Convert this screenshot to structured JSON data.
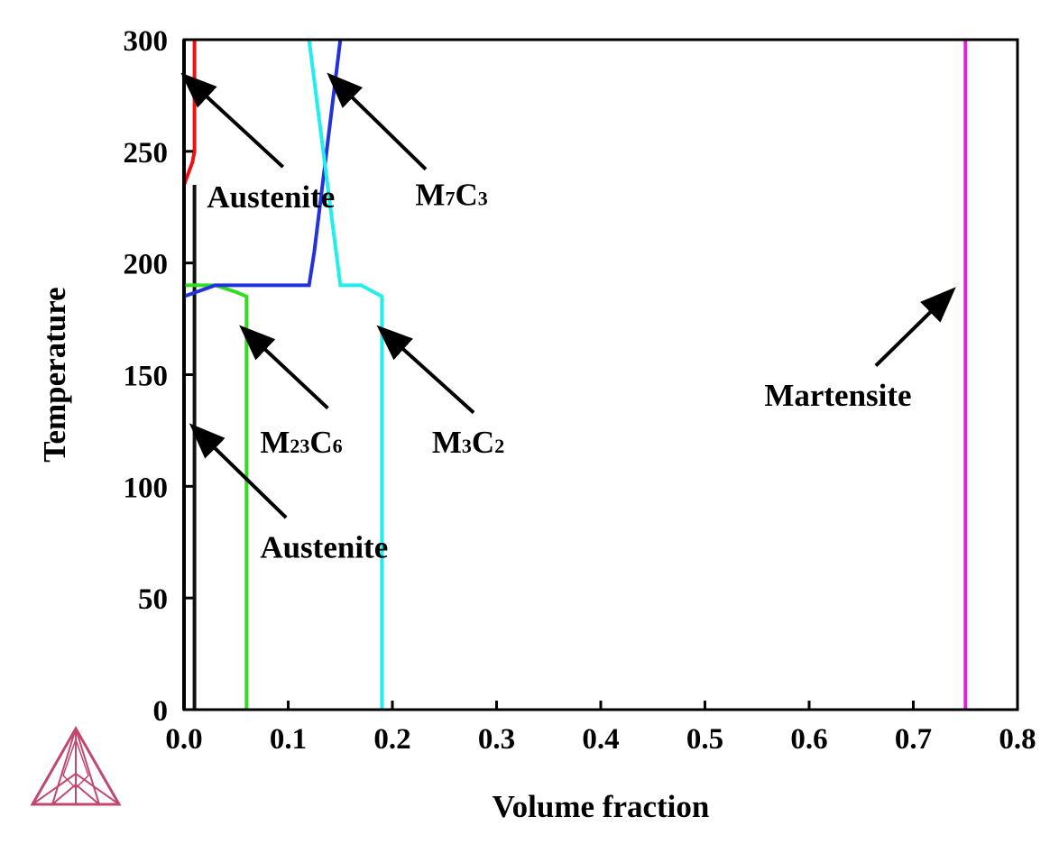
{
  "chart_data": {
    "type": "line",
    "xlabel": "Volume fraction",
    "ylabel": "Temperature",
    "xlim": [
      0,
      0.8
    ],
    "ylim": [
      0,
      300
    ],
    "x_ticks": [
      "0.0",
      "0.1",
      "0.2",
      "0.3",
      "0.4",
      "0.5",
      "0.6",
      "0.7",
      "0.8"
    ],
    "y_ticks": [
      "0",
      "50",
      "100",
      "150",
      "200",
      "250",
      "300"
    ],
    "grid": false,
    "legend": "none",
    "series": [
      {
        "color": "#ee1111",
        "x": [
          0.0,
          0.008,
          0.01,
          0.01
        ],
        "y": [
          235,
          245,
          250,
          300
        ]
      },
      {
        "color": "#111111",
        "x": [
          0.01,
          0.01
        ],
        "y": [
          0,
          235
        ]
      },
      {
        "color": "#000000",
        "x": [
          0.0,
          0.0
        ],
        "y": [
          0,
          300
        ]
      },
      {
        "color": "#33dd22",
        "x": [
          0.0,
          0.03,
          0.05,
          0.06,
          0.06
        ],
        "y": [
          190,
          190,
          187,
          185,
          0
        ]
      },
      {
        "color": "#2233dd",
        "x": [
          0.0,
          0.03,
          0.12,
          0.125,
          0.15
        ],
        "y": [
          185,
          190,
          190,
          205,
          300
        ]
      },
      {
        "color": "#22eeee",
        "x": [
          0.12,
          0.15,
          0.17,
          0.19,
          0.19
        ],
        "y": [
          300,
          190,
          190,
          185,
          0
        ]
      },
      {
        "color": "#dd22dd",
        "x": [
          0.75,
          0.75
        ],
        "y": [
          0,
          300
        ]
      }
    ],
    "annotations": [
      {
        "main": "Austenite",
        "tip": [
          0.002,
          283
        ],
        "tail": [
          0.095,
          243
        ],
        "label_at": [
          0.022,
          225
        ]
      },
      {
        "main": "M",
        "sub1": "7",
        "main2": "C",
        "sub2": "3",
        "tip": [
          0.142,
          283
        ],
        "tail": [
          0.232,
          242
        ],
        "label_at": [
          0.222,
          226
        ]
      },
      {
        "main": "M",
        "sub1": "23",
        "main2": "C",
        "sub2": "6",
        "tip": [
          0.058,
          170
        ],
        "tail": [
          0.138,
          135
        ],
        "label_at": [
          0.073,
          115
        ]
      },
      {
        "main": "M",
        "sub1": "3",
        "main2": "C",
        "sub2": "2",
        "tip": [
          0.19,
          170
        ],
        "tail": [
          0.278,
          133
        ],
        "label_at": [
          0.238,
          115
        ]
      },
      {
        "main": "Austenite",
        "tip": [
          0.01,
          126
        ],
        "tail": [
          0.098,
          86
        ],
        "label_at": [
          0.073,
          68
        ]
      },
      {
        "main": "Martensite",
        "tip": [
          0.736,
          187
        ],
        "tail": [
          0.664,
          154
        ],
        "label_at": [
          0.557,
          136
        ]
      }
    ],
    "logo": "thermo-calc-logo"
  }
}
